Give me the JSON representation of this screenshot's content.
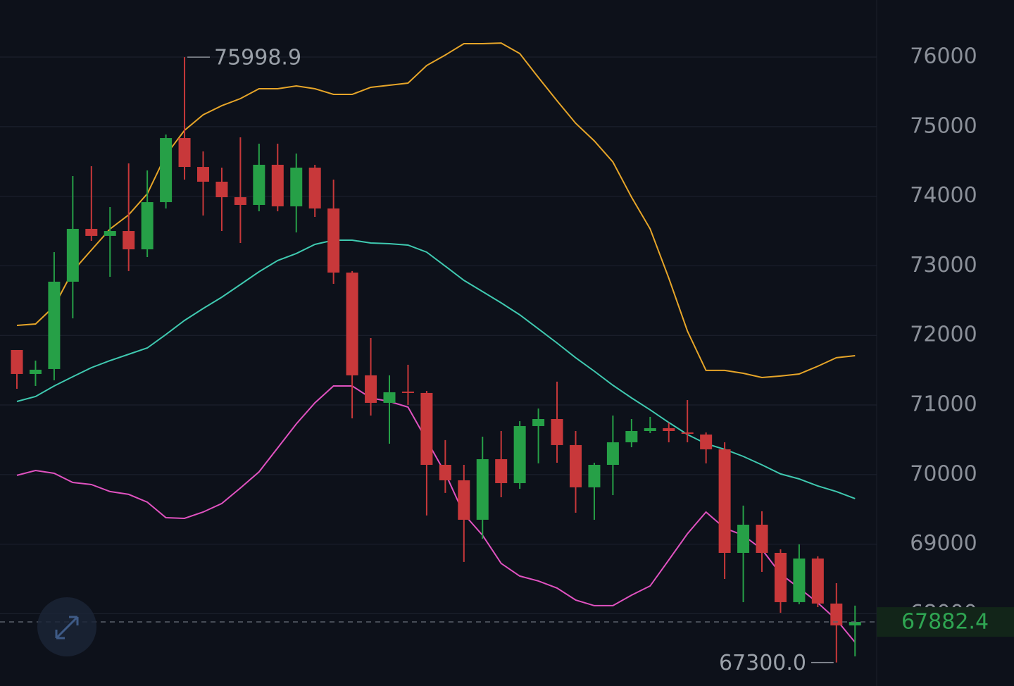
{
  "chart_data": {
    "type": "candlestick",
    "ylim": [
      66962,
      76820
    ],
    "yticks": [
      68000,
      69000,
      70000,
      71000,
      72000,
      73000,
      74000,
      75000,
      76000
    ],
    "grid": true,
    "up_color": "#26a047",
    "down_color": "#c8383a",
    "open": [
      71790,
      71446,
      71517,
      72772,
      73531,
      73430,
      73500,
      73237,
      73915,
      74836,
      74421,
      74209,
      73986,
      73875,
      74452,
      73855,
      74411,
      73824,
      72903,
      71426,
      71031,
      71193,
      71173,
      70140,
      69918,
      69351,
      70221,
      69877,
      70697,
      70798,
      70424,
      69817,
      70140,
      70464,
      70626,
      70667,
      70606,
      70576,
      70363,
      68875,
      69280,
      68875,
      68167,
      68794,
      68147,
      67833
    ],
    "high": [
      71790,
      71638,
      73197,
      74290,
      74432,
      73844,
      74472,
      74371,
      74887,
      75998.9,
      74644,
      74411,
      74846,
      74755,
      74755,
      74614,
      74452,
      74239,
      72924,
      71962,
      71426,
      71578,
      71203,
      70495,
      70140,
      70545,
      70626,
      70768,
      70950,
      71335,
      70626,
      70171,
      70849,
      70798,
      70829,
      70747,
      71071,
      70606,
      70464,
      69554,
      69473,
      68926,
      68997,
      68825,
      68440,
      68117
    ],
    "low": [
      71233,
      71274,
      71355,
      72245,
      73359,
      72843,
      72924,
      73126,
      73824,
      74239,
      73723,
      73500,
      73328,
      73784,
      73784,
      73480,
      73703,
      72741,
      70808,
      70849,
      70444,
      71001,
      69412,
      69736,
      68744,
      69078,
      69675,
      69796,
      70161,
      70171,
      69452,
      69351,
      69705,
      70393,
      70596,
      70464,
      70464,
      70161,
      68501,
      68167,
      68602,
      68015,
      68137,
      68096,
      67300,
      67388
    ],
    "close": [
      71446,
      71507,
      72772,
      73531,
      73430,
      73500,
      73237,
      73915,
      74836,
      74421,
      74209,
      73986,
      73875,
      74452,
      73855,
      74411,
      73824,
      72903,
      71426,
      71031,
      71183,
      71173,
      70140,
      69918,
      69351,
      70221,
      69877,
      70697,
      70798,
      70424,
      69817,
      70140,
      70464,
      70626,
      70667,
      70626,
      70596,
      70363,
      68875,
      69280,
      68875,
      68167,
      68794,
      68147,
      67833,
      67882.4
    ],
    "lines": [
      {
        "color": "#e6a529",
        "values": [
          72144,
          72164,
          72417,
          72923,
          73227,
          73530,
          73733,
          74036,
          74593,
          74947,
          75170,
          75301,
          75403,
          75545,
          75545,
          75585,
          75545,
          75464,
          75464,
          75565,
          75595,
          75626,
          75879,
          76030,
          76192,
          76192,
          76202,
          76051,
          75707,
          75373,
          75049,
          74796,
          74492,
          73986,
          73531,
          72822,
          72063,
          71497,
          71497,
          71456,
          71395,
          71416,
          71446,
          71557,
          71679,
          71709
        ]
      },
      {
        "color": "#3fc9b0",
        "values": [
          71051,
          71122,
          71274,
          71406,
          71537,
          71638,
          71729,
          71820,
          72013,
          72215,
          72387,
          72549,
          72731,
          72914,
          73076,
          73177,
          73308,
          73369,
          73369,
          73328,
          73318,
          73298,
          73197,
          72995,
          72792,
          72630,
          72468,
          72296,
          72094,
          71891,
          71679,
          71486,
          71284,
          71102,
          70930,
          70748,
          70576,
          70444,
          70363,
          70262,
          70140,
          70009,
          69938,
          69837,
          69756,
          69655
        ]
      },
      {
        "color": "#e052c0",
        "values": [
          69989,
          70059,
          70019,
          69887,
          69857,
          69756,
          69716,
          69604,
          69381,
          69371,
          69462,
          69584,
          69807,
          70039,
          70383,
          70728,
          71031,
          71274,
          71274,
          71102,
          71051,
          70970,
          70495,
          70019,
          69432,
          69128,
          68724,
          68542,
          68471,
          68370,
          68198,
          68117,
          68117,
          68268,
          68400,
          68774,
          69149,
          69462,
          69230,
          69128,
          68926,
          68572,
          68370,
          68157,
          67914,
          67590
        ]
      }
    ],
    "annotations": [
      {
        "value": 75998.9,
        "label": "75998.9"
      },
      {
        "value": 67300,
        "label": "67300.0"
      },
      {
        "value": 67882.4,
        "label": "67882.4"
      }
    ]
  }
}
